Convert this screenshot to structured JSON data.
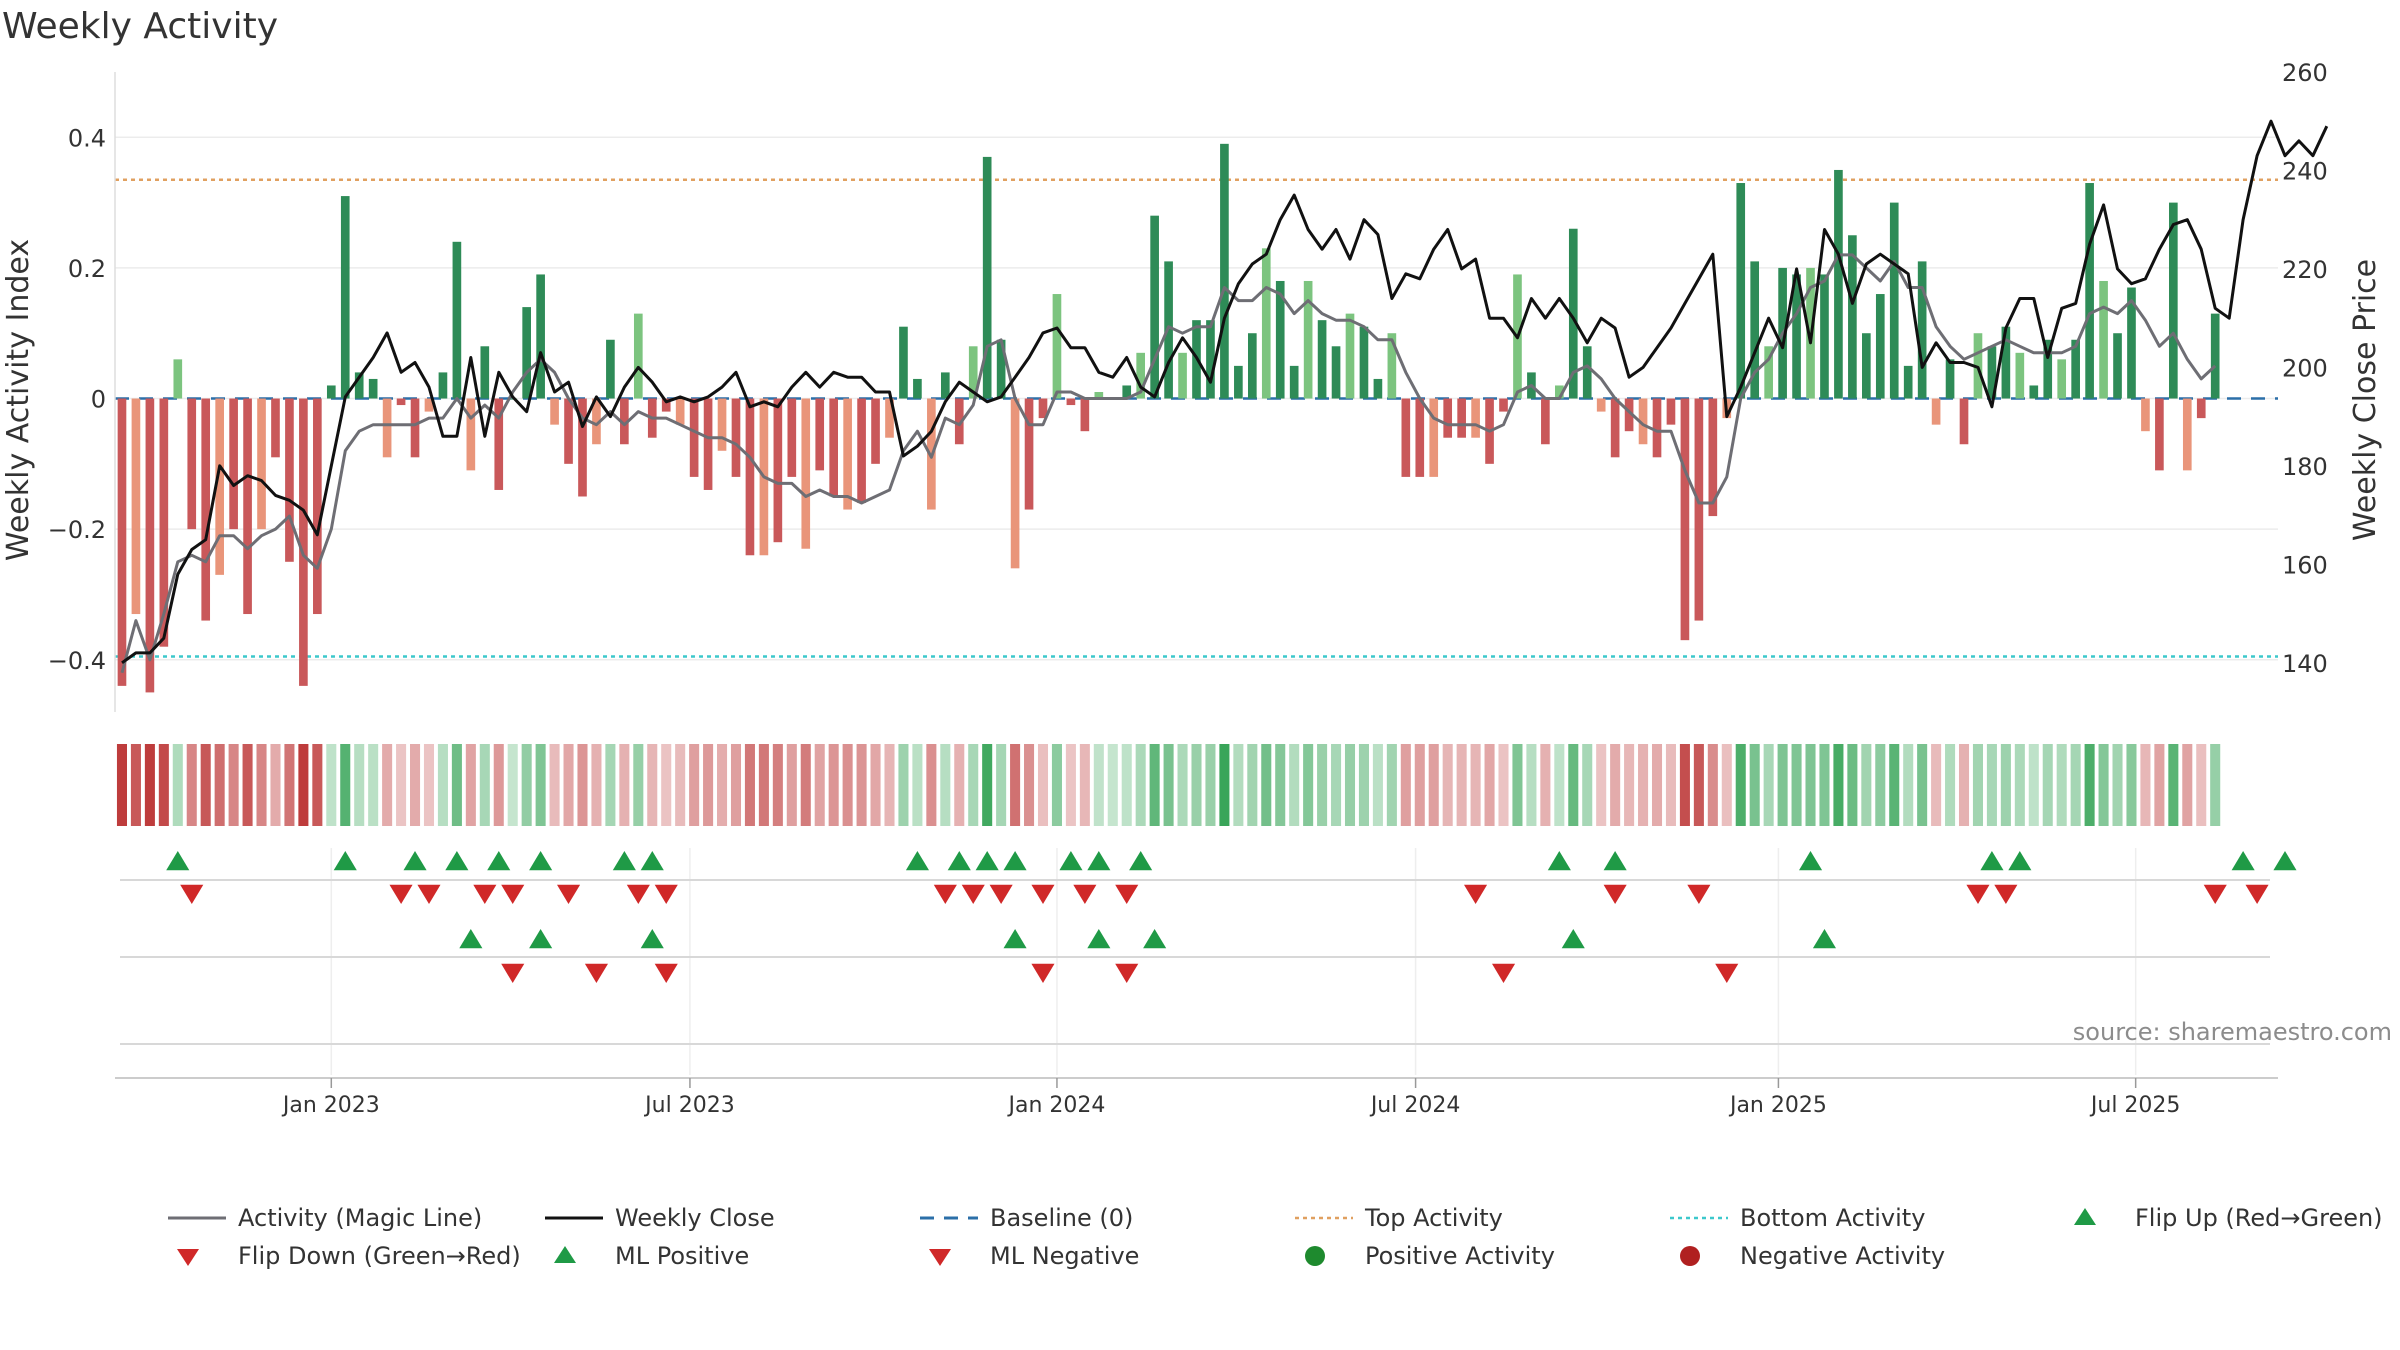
{
  "chart_data": {
    "type": "bar",
    "title": "Weekly Activity",
    "ylabel_left": "Weekly Activity Index",
    "ylabel_right": "Weekly Close Price",
    "ylim_left": [
      -0.48,
      0.5
    ],
    "ylim_right": [
      130,
      260
    ],
    "yticks_left": [
      {
        "value": 0.4,
        "label": "0.4"
      },
      {
        "value": 0.2,
        "label": "0.2"
      },
      {
        "value": 0,
        "label": "0"
      },
      {
        "value": -0.2,
        "label": "−0.2"
      },
      {
        "value": -0.4,
        "label": "−0.4"
      }
    ],
    "yticks_right": [
      {
        "value": 140,
        "label": "140"
      },
      {
        "value": 160,
        "label": "160"
      },
      {
        "value": 180,
        "label": "180"
      },
      {
        "value": 200,
        "label": "200"
      },
      {
        "value": 220,
        "label": "220"
      },
      {
        "value": 240,
        "label": "240"
      },
      {
        "value": 260,
        "label": "260"
      }
    ],
    "x_week_range": [
      -0.5,
      154.5
    ],
    "xticks": [
      {
        "week": 15,
        "label": "Jan 2023"
      },
      {
        "week": 40.7,
        "label": "Jul 2023"
      },
      {
        "week": 67,
        "label": "Jan 2024"
      },
      {
        "week": 92.7,
        "label": "Jul 2024"
      },
      {
        "week": 118.7,
        "label": "Jan 2025"
      },
      {
        "week": 144.3,
        "label": "Jul 2025"
      }
    ],
    "top_activity": 0.335,
    "bottom_activity": -0.395,
    "baseline": 0,
    "activity": [
      -0.44,
      -0.33,
      -0.45,
      -0.38,
      0.06,
      -0.2,
      -0.34,
      -0.27,
      -0.2,
      -0.33,
      -0.2,
      -0.09,
      -0.25,
      -0.44,
      -0.33,
      0.02,
      0.31,
      0.04,
      0.03,
      -0.09,
      -0.01,
      -0.09,
      -0.02,
      0.04,
      0.24,
      -0.11,
      0.08,
      -0.14,
      0.0,
      0.14,
      0.19,
      -0.04,
      -0.1,
      -0.15,
      -0.07,
      0.09,
      -0.07,
      0.13,
      -0.06,
      -0.02,
      -0.04,
      -0.12,
      -0.14,
      -0.08,
      -0.12,
      -0.24,
      -0.24,
      -0.22,
      -0.12,
      -0.23,
      -0.11,
      -0.15,
      -0.17,
      -0.16,
      -0.1,
      -0.06,
      0.11,
      0.03,
      -0.17,
      0.04,
      -0.07,
      0.08,
      0.37,
      0.09,
      -0.26,
      -0.17,
      -0.03,
      0.16,
      -0.01,
      -0.05,
      0.01,
      0.0,
      0.02,
      0.07,
      0.28,
      0.21,
      0.07,
      0.12,
      0.12,
      0.39,
      0.05,
      0.1,
      0.23,
      0.18,
      0.05,
      0.18,
      0.12,
      0.08,
      0.13,
      0.11,
      0.03,
      0.1,
      -0.12,
      -0.12,
      -0.12,
      -0.06,
      -0.06,
      -0.06,
      -0.1,
      -0.02,
      0.19,
      0.04,
      -0.07,
      0.02,
      0.26,
      0.08,
      -0.02,
      -0.09,
      -0.05,
      -0.07,
      -0.09,
      -0.04,
      -0.37,
      -0.34,
      -0.18,
      -0.03,
      0.33,
      0.21,
      0.08,
      0.2,
      0.19,
      0.2,
      0.19,
      0.35,
      0.25,
      0.1,
      0.16,
      0.3,
      0.05,
      0.21,
      -0.04,
      0.06,
      -0.07,
      0.1,
      0.08,
      0.11,
      0.07,
      0.02,
      0.09,
      0.06,
      0.09,
      0.33,
      0.18,
      0.1,
      0.17,
      -0.05,
      -0.11,
      0.3,
      -0.11,
      -0.03,
      0.13
    ],
    "magic_line": [
      -0.42,
      -0.34,
      -0.4,
      -0.33,
      -0.25,
      -0.24,
      -0.25,
      -0.21,
      -0.21,
      -0.23,
      -0.21,
      -0.2,
      -0.18,
      -0.24,
      -0.26,
      -0.2,
      -0.08,
      -0.05,
      -0.04,
      -0.04,
      -0.04,
      -0.04,
      -0.03,
      -0.03,
      0.0,
      -0.03,
      -0.01,
      -0.03,
      0.01,
      0.04,
      0.06,
      0.04,
      0.0,
      -0.03,
      -0.04,
      -0.02,
      -0.04,
      -0.02,
      -0.03,
      -0.03,
      -0.04,
      -0.05,
      -0.06,
      -0.06,
      -0.07,
      -0.09,
      -0.12,
      -0.13,
      -0.13,
      -0.15,
      -0.14,
      -0.15,
      -0.15,
      -0.16,
      -0.15,
      -0.14,
      -0.08,
      -0.05,
      -0.09,
      -0.03,
      -0.04,
      -0.01,
      0.08,
      0.09,
      0.0,
      -0.04,
      -0.04,
      0.01,
      0.01,
      0.0,
      0.0,
      0.0,
      0.0,
      0.01,
      0.06,
      0.11,
      0.1,
      0.11,
      0.11,
      0.17,
      0.15,
      0.15,
      0.17,
      0.16,
      0.13,
      0.15,
      0.13,
      0.12,
      0.12,
      0.11,
      0.09,
      0.09,
      0.04,
      0.0,
      -0.03,
      -0.04,
      -0.04,
      -0.04,
      -0.05,
      -0.04,
      0.01,
      0.02,
      0.0,
      0.0,
      0.04,
      0.05,
      0.03,
      0.0,
      -0.02,
      -0.04,
      -0.05,
      -0.05,
      -0.11,
      -0.16,
      -0.16,
      -0.12,
      0.0,
      0.04,
      0.06,
      0.1,
      0.13,
      0.17,
      0.18,
      0.22,
      0.22,
      0.2,
      0.18,
      0.21,
      0.17,
      0.17,
      0.11,
      0.08,
      0.06,
      0.07,
      0.08,
      0.09,
      0.08,
      0.07,
      0.07,
      0.07,
      0.08,
      0.13,
      0.14,
      0.13,
      0.15,
      0.12,
      0.08,
      0.1,
      0.06,
      0.03,
      0.05
    ],
    "weekly_close": [
      140,
      142,
      142,
      145,
      158,
      163,
      165,
      180,
      176,
      178,
      177,
      174,
      173,
      171,
      166,
      180,
      194,
      198,
      202,
      207,
      199,
      201,
      196,
      186,
      186,
      202,
      186,
      199,
      194,
      191,
      203,
      195,
      197,
      188,
      194,
      190,
      196,
      200,
      197,
      193,
      194,
      193,
      194,
      196,
      199,
      192,
      193,
      192,
      196,
      199,
      196,
      199,
      198,
      198,
      195,
      195,
      182,
      184,
      187,
      193,
      197,
      195,
      193,
      194,
      198,
      202,
      207,
      208,
      204,
      204,
      199,
      198,
      202,
      196,
      194,
      201,
      206,
      202,
      197,
      210,
      217,
      221,
      223,
      230,
      235,
      228,
      224,
      228,
      222,
      230,
      227,
      214,
      219,
      218,
      224,
      228,
      220,
      222,
      210,
      210,
      206,
      214,
      210,
      214,
      210,
      205,
      210,
      208,
      198,
      200,
      204,
      208,
      213,
      218,
      223,
      190,
      196,
      203,
      210,
      204,
      220,
      205,
      228,
      223,
      213,
      221,
      223,
      221,
      219,
      200,
      205,
      201,
      201,
      200,
      192,
      208,
      214,
      214,
      202,
      212,
      213,
      225,
      233,
      220,
      217,
      218,
      224,
      229,
      230,
      224,
      212,
      210,
      230,
      243,
      250,
      243,
      246,
      243,
      249
    ],
    "heat_values": [
      -0.44,
      -0.33,
      -0.45,
      -0.38,
      0.06,
      -0.2,
      -0.34,
      -0.27,
      -0.2,
      -0.33,
      -0.2,
      -0.09,
      -0.25,
      -0.44,
      -0.33,
      0.02,
      0.31,
      0.04,
      0.03,
      -0.09,
      -0.01,
      -0.09,
      -0.02,
      0.04,
      0.24,
      -0.11,
      0.08,
      -0.14,
      0.0,
      0.14,
      0.19,
      -0.04,
      -0.1,
      -0.15,
      -0.07,
      0.09,
      -0.07,
      0.13,
      -0.06,
      -0.02,
      -0.04,
      -0.12,
      -0.14,
      -0.08,
      -0.12,
      -0.24,
      -0.24,
      -0.22,
      -0.12,
      -0.23,
      -0.11,
      -0.15,
      -0.17,
      -0.16,
      -0.1,
      -0.06,
      0.11,
      0.03,
      -0.17,
      0.04,
      -0.07,
      0.08,
      0.37,
      0.09,
      -0.26,
      -0.17,
      -0.03,
      0.16,
      -0.01,
      -0.05,
      0.01,
      0.0,
      0.02,
      0.07,
      0.28,
      0.21,
      0.07,
      0.12,
      0.12,
      0.39,
      0.05,
      0.1,
      0.23,
      0.18,
      0.05,
      0.18,
      0.12,
      0.08,
      0.13,
      0.11,
      0.03,
      0.1,
      -0.12,
      -0.12,
      -0.12,
      -0.06,
      -0.06,
      -0.06,
      -0.1,
      -0.02,
      0.19,
      0.04,
      -0.07,
      0.02,
      0.26,
      0.08,
      -0.02,
      -0.09,
      -0.05,
      -0.07,
      -0.09,
      -0.04,
      -0.37,
      -0.34,
      -0.18,
      -0.03,
      0.33,
      0.21,
      0.08,
      0.2,
      0.19,
      0.2,
      0.19,
      0.35,
      0.25,
      0.1,
      0.16,
      0.3,
      0.05,
      0.21,
      -0.04,
      0.06,
      -0.07,
      0.1,
      0.08,
      0.11,
      0.07,
      0.02,
      0.09,
      0.06,
      0.09,
      0.33,
      0.18,
      0.1,
      0.17,
      -0.05,
      -0.11,
      0.3,
      -0.11,
      -0.03,
      0.13
    ],
    "flip_up_weeks": [
      4,
      16,
      21,
      24,
      27,
      30,
      36,
      38,
      57,
      60,
      62,
      64,
      68,
      70,
      73,
      103,
      107,
      121,
      134,
      136,
      152,
      155
    ],
    "flip_down_weeks": [
      5,
      20,
      22,
      26,
      28,
      32,
      37,
      39,
      59,
      61,
      63,
      66,
      69,
      72,
      97,
      107,
      113,
      133,
      135,
      150,
      153
    ],
    "ml_positive_weeks": [
      25,
      30,
      38,
      64,
      70,
      74,
      104,
      122
    ],
    "ml_negative_weeks": [
      28,
      34,
      39,
      66,
      72,
      99,
      115
    ],
    "source_text": "source: sharemaestro.com",
    "colors": {
      "strong_green": "#2e8b57",
      "light_green": "#7cc47f",
      "strong_red": "#c9585a",
      "light_red": "#e9957a",
      "magic_line": "#6e6e74",
      "weekly_close": "#111111",
      "baseline": "#2b6fa8",
      "top_activity": "#e0a060",
      "bottom_activity": "#3cc8cc",
      "marker_green": "#1f9a46",
      "marker_red": "#d02828",
      "dot_green": "#1e8a2e",
      "dot_red": "#b02020"
    },
    "legend": [
      {
        "label": "Activity (Magic Line)",
        "symbol": "line",
        "color": "#6e6e74"
      },
      {
        "label": "Weekly Close",
        "symbol": "line",
        "color": "#111111"
      },
      {
        "label": "Baseline (0)",
        "symbol": "dash",
        "color": "#2b6fa8"
      },
      {
        "label": "Top Activity",
        "symbol": "dot-line",
        "color": "#e0a060"
      },
      {
        "label": "Bottom Activity",
        "symbol": "dot-line",
        "color": "#3cc8cc"
      },
      {
        "label": "Flip Up (Red→Green)",
        "symbol": "triangle-up",
        "color": "#1f9a46"
      },
      {
        "label": "Flip Down (Green→Red)",
        "symbol": "triangle-down",
        "color": "#d02828"
      },
      {
        "label": "ML Positive",
        "symbol": "triangle-up",
        "color": "#1f9a46"
      },
      {
        "label": "ML Negative",
        "symbol": "triangle-down",
        "color": "#d02828"
      },
      {
        "label": "Positive Activity",
        "symbol": "circle",
        "color": "#1e8a2e"
      },
      {
        "label": "Negative Activity",
        "symbol": "circle",
        "color": "#b02020"
      }
    ]
  }
}
